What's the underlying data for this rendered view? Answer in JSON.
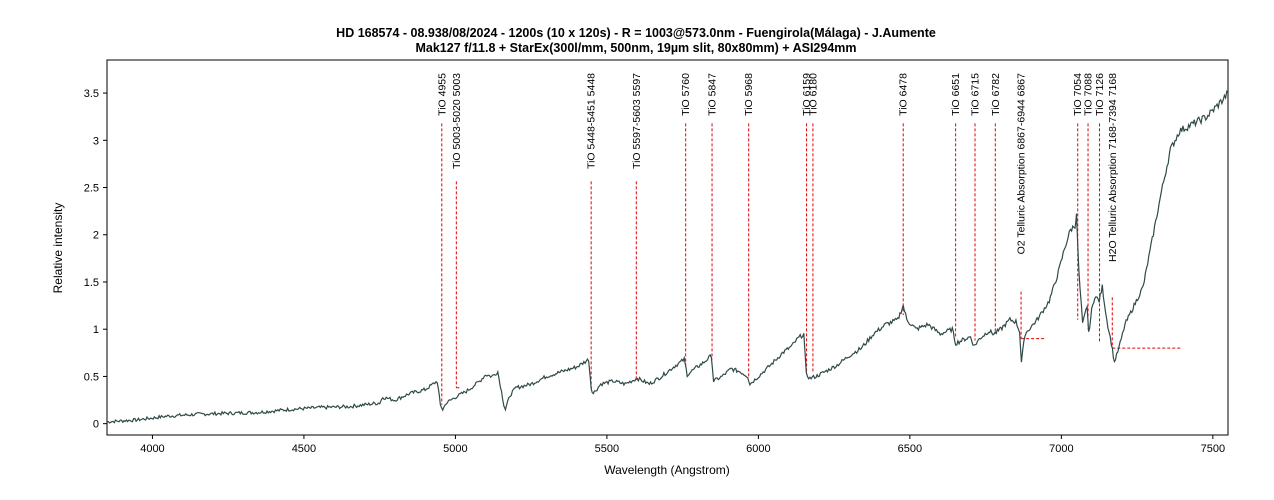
{
  "chart_data": {
    "type": "line",
    "title": "HD 168574 - 08.938/08/2024 - 1200s (10 x 120s) - R = 1003@573.0nm - Fuengirola(Málaga) - J.Aumente",
    "subtitle": "Mak127 f/11.8 + StarEx(300l/mm, 500nm, 19µm slit, 80x80mm) + ASI294mm",
    "xlabel": "Wavelength (Angstrom)",
    "ylabel": "Relative intensity",
    "xlim": [
      3850,
      7550
    ],
    "ylim": [
      -0.12,
      3.85
    ],
    "x_ticks": [
      4000,
      4500,
      5000,
      5500,
      6000,
      6500,
      7000,
      7500
    ],
    "y_ticks": [
      0,
      0.5,
      1,
      1.5,
      2,
      2.5,
      3,
      3.5
    ],
    "y_tick_labels": [
      "0",
      "0.5",
      "1",
      "1.5",
      "2",
      "2.5",
      "3",
      "3.5"
    ],
    "grid": false,
    "line_color": "#2f4a48",
    "marker_color": "#e00000",
    "series": [
      {
        "x": [
          3850,
          3950,
          4050,
          4150,
          4250,
          4350,
          4450,
          4550,
          4650,
          4750,
          4760,
          4800,
          4850,
          4900,
          4940,
          4950,
          4958,
          4970,
          5000,
          5040,
          5060,
          5080,
          5100,
          5120,
          5140,
          5160,
          5165,
          5180,
          5200,
          5250,
          5300,
          5350,
          5400,
          5440,
          5448,
          5455,
          5480,
          5520,
          5560,
          5600,
          5640,
          5680,
          5720,
          5755,
          5765,
          5790,
          5820,
          5845,
          5852,
          5880,
          5910,
          5940,
          5965,
          5972,
          6000,
          6040,
          6080,
          6110,
          6130,
          6150,
          6158,
          6170,
          6190,
          6220,
          6260,
          6300,
          6340,
          6380,
          6420,
          6460,
          6478,
          6490,
          6520,
          6560,
          6600,
          6640,
          6651,
          6670,
          6700,
          6712,
          6730,
          6760,
          6778,
          6800,
          6830,
          6850,
          6862,
          6868,
          6880,
          6920,
          6960,
          6990,
          7010,
          7030,
          7045,
          7050,
          7058,
          7070,
          7085,
          7090,
          7100,
          7110,
          7125,
          7135,
          7150,
          7165,
          7175,
          7190,
          7210,
          7240,
          7270,
          7300,
          7330,
          7360,
          7390,
          7420,
          7450,
          7480,
          7510,
          7530,
          7550
        ],
        "y": [
          0.02,
          0.04,
          0.08,
          0.1,
          0.11,
          0.12,
          0.15,
          0.17,
          0.18,
          0.22,
          0.28,
          0.25,
          0.32,
          0.36,
          0.45,
          0.2,
          0.15,
          0.22,
          0.28,
          0.35,
          0.4,
          0.45,
          0.52,
          0.5,
          0.55,
          0.2,
          0.15,
          0.3,
          0.38,
          0.42,
          0.5,
          0.55,
          0.6,
          0.68,
          0.38,
          0.32,
          0.42,
          0.45,
          0.42,
          0.48,
          0.42,
          0.5,
          0.6,
          0.68,
          0.52,
          0.58,
          0.65,
          0.72,
          0.45,
          0.5,
          0.58,
          0.55,
          0.5,
          0.42,
          0.5,
          0.62,
          0.75,
          0.82,
          0.9,
          0.95,
          0.52,
          0.48,
          0.5,
          0.55,
          0.62,
          0.72,
          0.8,
          0.95,
          1.05,
          1.1,
          1.25,
          1.1,
          1.0,
          1.05,
          0.95,
          1.0,
          0.85,
          0.88,
          0.92,
          0.82,
          0.9,
          0.98,
          0.95,
          1.0,
          1.1,
          1.08,
          0.98,
          0.65,
          0.95,
          1.1,
          1.3,
          1.6,
          1.85,
          2.05,
          2.1,
          2.2,
          1.6,
          1.05,
          1.25,
          0.95,
          1.2,
          1.35,
          1.3,
          1.45,
          1.1,
          0.85,
          0.65,
          0.8,
          1.05,
          1.25,
          1.45,
          1.95,
          2.45,
          2.9,
          3.1,
          3.15,
          3.2,
          3.25,
          3.35,
          3.42,
          3.5
        ]
      }
    ],
    "markers": [
      {
        "x": 4955,
        "label": "TiO 4955",
        "y_end": 0.2
      },
      {
        "x": 5003,
        "label": "TiO 5003-5020 5003",
        "y_end": 0.38,
        "y_bar": 0.38,
        "x_end": 5020
      },
      {
        "x": 5448,
        "label": "TiO 5448-5451 5448",
        "y_end": 0.38,
        "y_bar": 0.38,
        "x_end": 5451
      },
      {
        "x": 5597,
        "label": "TiO 5597-5603 5597",
        "y_end": 0.48,
        "y_bar": 0.48,
        "x_end": 5603
      },
      {
        "x": 5760,
        "label": "TiO 5760",
        "y_end": 0.6
      },
      {
        "x": 5847,
        "label": "TiO 5847",
        "y_end": 0.68
      },
      {
        "x": 5968,
        "label": "TiO 5968",
        "y_end": 0.5
      },
      {
        "x": 6159,
        "label": "TiO 6159",
        "y_end": 0.55
      },
      {
        "x": 6180,
        "label": "TiO 6180",
        "y_end": 0.55
      },
      {
        "x": 6478,
        "label": "TiO 6478",
        "y_end": 1.15
      },
      {
        "x": 6651,
        "label": "TiO 6651",
        "y_end": 0.9
      },
      {
        "x": 6715,
        "label": "TiO 6715",
        "y_end": 0.88
      },
      {
        "x": 6782,
        "label": "TiO 6782",
        "y_end": 0.95
      },
      {
        "x": 6867,
        "label": "O2 Telluric Absorption 6867-6944 6867",
        "y_end": 0.9,
        "y_bar": 0.9,
        "x_end": 6944
      },
      {
        "x": 7054,
        "label": "TiO 7054",
        "y_end": 1.1
      },
      {
        "x": 7088,
        "label": "TiO 7088",
        "y_end": 1.0
      },
      {
        "x": 7126,
        "label": "TiO 7126",
        "y_end": 0.85
      },
      {
        "x": 7168,
        "label": "H2O Telluric Absorption 7168-7394 7168",
        "y_end": 0.8,
        "y_bar": 0.8,
        "x_end": 7394
      }
    ]
  }
}
